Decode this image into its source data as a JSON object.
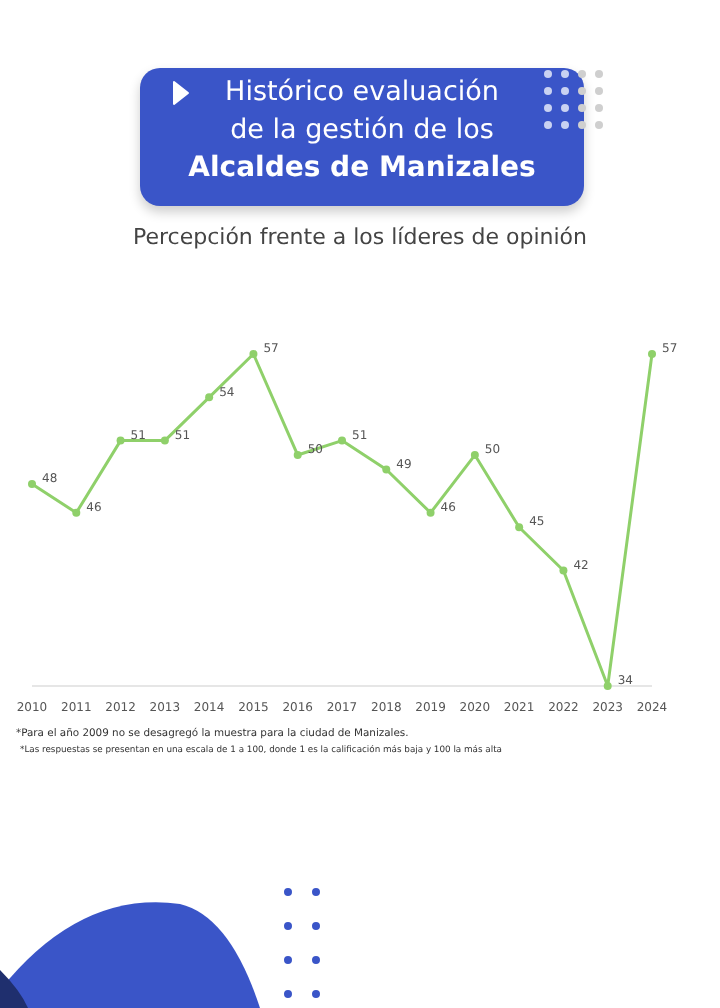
{
  "chart_data": {
    "type": "line",
    "title": "Histórico evaluación\nde la gestión de los\nAlcaldes de Manizales",
    "subtitle": "Percepción frente a los líderes de opinión",
    "categories": [
      "2010",
      "2011",
      "2012",
      "2013",
      "2014",
      "2015",
      "2016",
      "2017",
      "2018",
      "2019",
      "2020",
      "2021",
      "2022",
      "2023",
      "2024"
    ],
    "series": [
      {
        "color": "#8fd06a",
        "values": [
          48,
          46,
          51,
          51,
          54,
          57,
          50,
          51,
          49,
          46,
          50,
          45,
          42,
          34,
          57
        ]
      }
    ],
    "data_labels": true,
    "tick_labels": "x",
    "marker": "circle",
    "grid": false,
    "legend": false,
    "annotations": [
      "*Para el año 2009 no se desagregó la muestra para la ciudad de Manizales.",
      "*Las respuestas se presentan en una escala de 1 a 100, donde 1 es la calificación más baja y 100 la más alta"
    ]
  }
}
